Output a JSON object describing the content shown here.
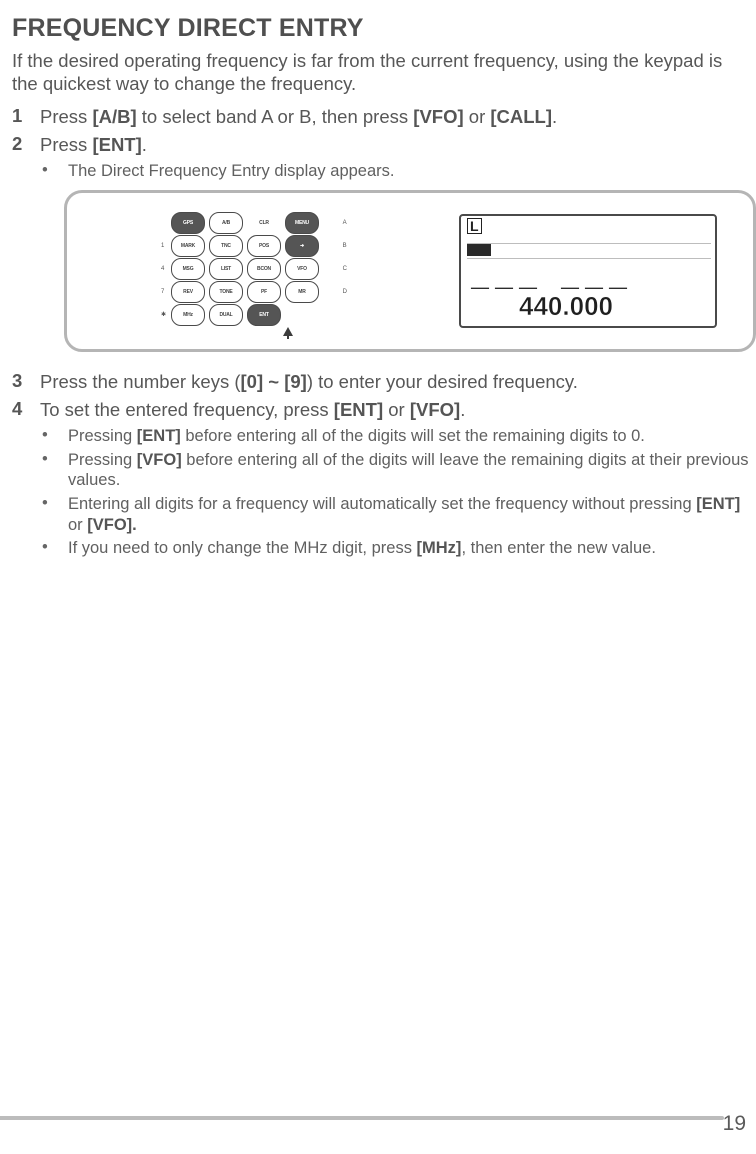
{
  "title": "FREQUENCY DIRECT ENTRY",
  "intro": "If the desired operating frequency is far from the current frequency, using the keypad is the quickest way to change the frequency.",
  "steps": {
    "s1_num": "1",
    "s1_pre": "Press ",
    "s1_b1": "[A/B]",
    "s1_mid1": " to select band A or B, then press ",
    "s1_b2": "[VFO]",
    "s1_mid2": " or ",
    "s1_b3": "[CALL]",
    "s1_post": ".",
    "s2_num": "2",
    "s2_pre": "Press  ",
    "s2_b1": "[ENT]",
    "s2_post": ".",
    "s2_sub1": "The Direct Frequency Entry display appears.",
    "s3_num": "3",
    "s3_pre": "Press the number keys (",
    "s3_b1": "[0] ~ [9]",
    "s3_post": ") to enter your desired frequency.",
    "s4_num": "4",
    "s4_pre": "To set the entered frequency, press ",
    "s4_b1": "[ENT]",
    "s4_mid1": " or ",
    "s4_b2": "[VFO]",
    "s4_post": ".",
    "s4_sub1_pre": "Pressing ",
    "s4_sub1_b": "[ENT]",
    "s4_sub1_post": " before entering all of the digits will set the remaining digits to 0.",
    "s4_sub2_pre": "Pressing ",
    "s4_sub2_b": "[VFO]",
    "s4_sub2_post": " before entering all of the digits will leave the remaining digits at their previous values.",
    "s4_sub3_pre": "Entering all digits for a frequency will automatically set the frequency without pressing ",
    "s4_sub3_b1": "[ENT]",
    "s4_sub3_mid": " or ",
    "s4_sub3_b2": "[VFO].",
    "s4_sub4_pre": "If you need to only change the MHz digit, press ",
    "s4_sub4_b": "[MHz]",
    "s4_sub4_post": ", then enter the new value."
  },
  "figure": {
    "keypad_rows_left": [
      "1",
      "4",
      "7",
      "✱"
    ],
    "keypad_rows_mid": [
      "2",
      "5",
      "8",
      "0"
    ],
    "lcd_marker": "L",
    "lcd_dashes": "___",
    "lcd_dashes2": "___",
    "lcd_freq": "440.000",
    "keypad_labels": {
      "r1": [
        "GPS",
        "A/B",
        "CLR",
        "MENU"
      ],
      "r2": [
        "MARK",
        "TNC",
        "POS",
        "➜"
      ],
      "r3": [
        "MSG",
        "LIST",
        "BCON",
        "VFO"
      ],
      "r4": [
        "REV",
        "TONE",
        "PF",
        "MR"
      ],
      "r5": [
        "SHIFT",
        "DUP",
        "STEP",
        "CALL"
      ],
      "r6": [
        "MHz",
        "DUAL",
        "ENT",
        ""
      ]
    },
    "mini_top": [
      "",
      "ABC",
      "DEF",
      ""
    ],
    "mini_mid1": [
      "GHI",
      "JKL",
      "MNO"
    ],
    "mini_mid2": [
      "PQRS",
      "TUV",
      "WXYZ"
    ],
    "side_right": [
      "",
      "A",
      "B",
      "C",
      "D"
    ],
    "side_left": [
      "1",
      "4",
      "7",
      "✱"
    ],
    "side_left2": [
      "2",
      "5",
      "8",
      "0"
    ],
    "side_left3": [
      "3",
      "6",
      "9",
      "#"
    ]
  },
  "page_number": "19",
  "colors": {
    "text": "#5a5a5a",
    "rule": "#bcbcbc",
    "frame_border": "#b5b5b5",
    "lcd_border": "#4a4a4a"
  }
}
